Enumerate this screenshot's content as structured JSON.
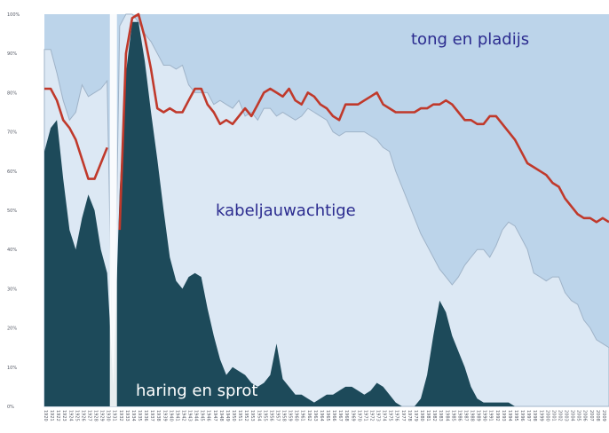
{
  "chart_data": {
    "type": "area",
    "title": "",
    "xlabel": "",
    "ylabel": "",
    "ylim": [
      0,
      100
    ],
    "y_ticks": [
      "0%",
      "10%",
      "20%",
      "30%",
      "40%",
      "50%",
      "60%",
      "70%",
      "80%",
      "90%",
      "100%"
    ],
    "x_range": [
      1920,
      2010
    ],
    "break_year": 1931,
    "colors": {
      "background": "#ffffff",
      "total_area": "#bcd4ea",
      "flatfish_area": "#dce8f4",
      "herring_area": "#1d4a5a",
      "red_line": "#c0392b",
      "label_blue": "#2b2b8f",
      "label_white": "#ffffff"
    },
    "series": [
      {
        "name": "tong en pladijs",
        "style": "area-top",
        "x": [
          1920,
          1921,
          1922,
          1923,
          1924,
          1925,
          1926,
          1927,
          1928,
          1929,
          1930,
          1931,
          1932,
          1933,
          1934,
          1935,
          1936,
          1937,
          1938,
          1939,
          1940,
          1941,
          1942,
          1943,
          1944,
          1945,
          1946,
          1947,
          1948,
          1949,
          1950,
          1951,
          1952,
          1953,
          1954,
          1955,
          1956,
          1957,
          1958,
          1959,
          1960,
          1961,
          1962,
          1963,
          1964,
          1965,
          1966,
          1967,
          1968,
          1969,
          1970,
          1971,
          1972,
          1973,
          1974,
          1975,
          1976,
          1977,
          1978,
          1979,
          1980,
          1981,
          1982,
          1983,
          1984,
          1985,
          1986,
          1987,
          1988,
          1989,
          1990,
          1991,
          1992,
          1993,
          1994,
          1995,
          1996,
          1997,
          1998,
          1999,
          2000,
          2001,
          2002,
          2003,
          2004,
          2005,
          2006,
          2007,
          2008,
          2009,
          2010
        ],
        "values": [
          91,
          91,
          85,
          78,
          73,
          75,
          82,
          79,
          80,
          81,
          83,
          0,
          97,
          100,
          100,
          98,
          95,
          93,
          90,
          87,
          87,
          86,
          87,
          82,
          80,
          80,
          80,
          77,
          78,
          77,
          76,
          78,
          74,
          75,
          73,
          76,
          76,
          74,
          75,
          74,
          73,
          74,
          76,
          75,
          74,
          73,
          70,
          69,
          70,
          70,
          70,
          70,
          69,
          68,
          66,
          65,
          60,
          56,
          52,
          48,
          44,
          41,
          38,
          35,
          33,
          31,
          33,
          36,
          38,
          40,
          40,
          38,
          41,
          45,
          47,
          46,
          43,
          40,
          34,
          33,
          32,
          33,
          33,
          29,
          27,
          26,
          22,
          20,
          17,
          16,
          15
        ]
      },
      {
        "name": "kabeljauwachtige",
        "style": "line",
        "x": [
          1920,
          1921,
          1922,
          1923,
          1924,
          1925,
          1926,
          1927,
          1928,
          1929,
          1930,
          1931,
          1932,
          1933,
          1934,
          1935,
          1936,
          1937,
          1938,
          1939,
          1940,
          1941,
          1942,
          1943,
          1944,
          1945,
          1946,
          1947,
          1948,
          1949,
          1950,
          1951,
          1952,
          1953,
          1954,
          1955,
          1956,
          1957,
          1958,
          1959,
          1960,
          1961,
          1962,
          1963,
          1964,
          1965,
          1966,
          1967,
          1968,
          1969,
          1970,
          1971,
          1972,
          1973,
          1974,
          1975,
          1976,
          1977,
          1978,
          1979,
          1980,
          1981,
          1982,
          1983,
          1984,
          1985,
          1986,
          1987,
          1988,
          1989,
          1990,
          1991,
          1992,
          1993,
          1994,
          1995,
          1996,
          1997,
          1998,
          1999,
          2000,
          2001,
          2002,
          2003,
          2004,
          2005,
          2006,
          2007,
          2008,
          2009,
          2010
        ],
        "values": [
          81,
          81,
          78,
          73,
          71,
          68,
          63,
          58,
          58,
          62,
          66,
          null,
          45,
          90,
          99,
          100,
          94,
          86,
          76,
          75,
          76,
          75,
          75,
          78,
          81,
          81,
          77,
          75,
          72,
          73,
          72,
          74,
          76,
          74,
          77,
          80,
          81,
          80,
          79,
          81,
          78,
          77,
          80,
          79,
          77,
          76,
          74,
          73,
          77,
          77,
          77,
          78,
          79,
          80,
          77,
          76,
          75,
          75,
          75,
          75,
          76,
          76,
          77,
          77,
          78,
          77,
          75,
          73,
          73,
          72,
          72,
          74,
          74,
          72,
          70,
          68,
          65,
          62,
          61,
          60,
          59,
          57,
          56,
          53,
          51,
          49,
          48,
          48,
          47,
          48,
          47
        ]
      },
      {
        "name": "haring en sprot",
        "style": "area",
        "x": [
          1920,
          1921,
          1922,
          1923,
          1924,
          1925,
          1926,
          1927,
          1928,
          1929,
          1930,
          1931,
          1932,
          1933,
          1934,
          1935,
          1936,
          1937,
          1938,
          1939,
          1940,
          1941,
          1942,
          1943,
          1944,
          1945,
          1946,
          1947,
          1948,
          1949,
          1950,
          1951,
          1952,
          1953,
          1954,
          1955,
          1956,
          1957,
          1958,
          1959,
          1960,
          1961,
          1962,
          1963,
          1964,
          1965,
          1966,
          1967,
          1968,
          1969,
          1970,
          1971,
          1972,
          1973,
          1974,
          1975,
          1976,
          1977,
          1978,
          1979,
          1980,
          1981,
          1982,
          1983,
          1984,
          1985,
          1986,
          1987,
          1988,
          1989,
          1990,
          1991,
          1992,
          1993,
          1994,
          1995,
          1996,
          1997,
          1998,
          1999,
          2000,
          2001,
          2002,
          2003,
          2004,
          2005,
          2006,
          2007,
          2008,
          2009,
          2010
        ],
        "values": [
          65,
          71,
          73,
          58,
          45,
          40,
          48,
          54,
          50,
          40,
          34,
          5,
          55,
          85,
          98,
          98,
          88,
          75,
          63,
          50,
          38,
          32,
          30,
          33,
          34,
          33,
          25,
          18,
          12,
          8,
          10,
          9,
          8,
          6,
          5,
          6,
          8,
          16,
          7,
          5,
          3,
          3,
          2,
          1,
          2,
          3,
          3,
          4,
          5,
          5,
          4,
          3,
          4,
          6,
          5,
          3,
          1,
          0,
          0,
          0,
          2,
          8,
          18,
          27,
          24,
          18,
          14,
          10,
          5,
          2,
          1,
          1,
          1,
          1,
          1,
          0,
          0,
          0,
          0,
          0,
          0,
          0,
          0,
          0,
          0,
          0,
          0,
          0,
          0,
          0,
          0
        ]
      }
    ]
  },
  "labels": {
    "flatfish": "tong en pladijs",
    "cod": "kabeljauwachtige",
    "herring": "haring en sprot"
  }
}
